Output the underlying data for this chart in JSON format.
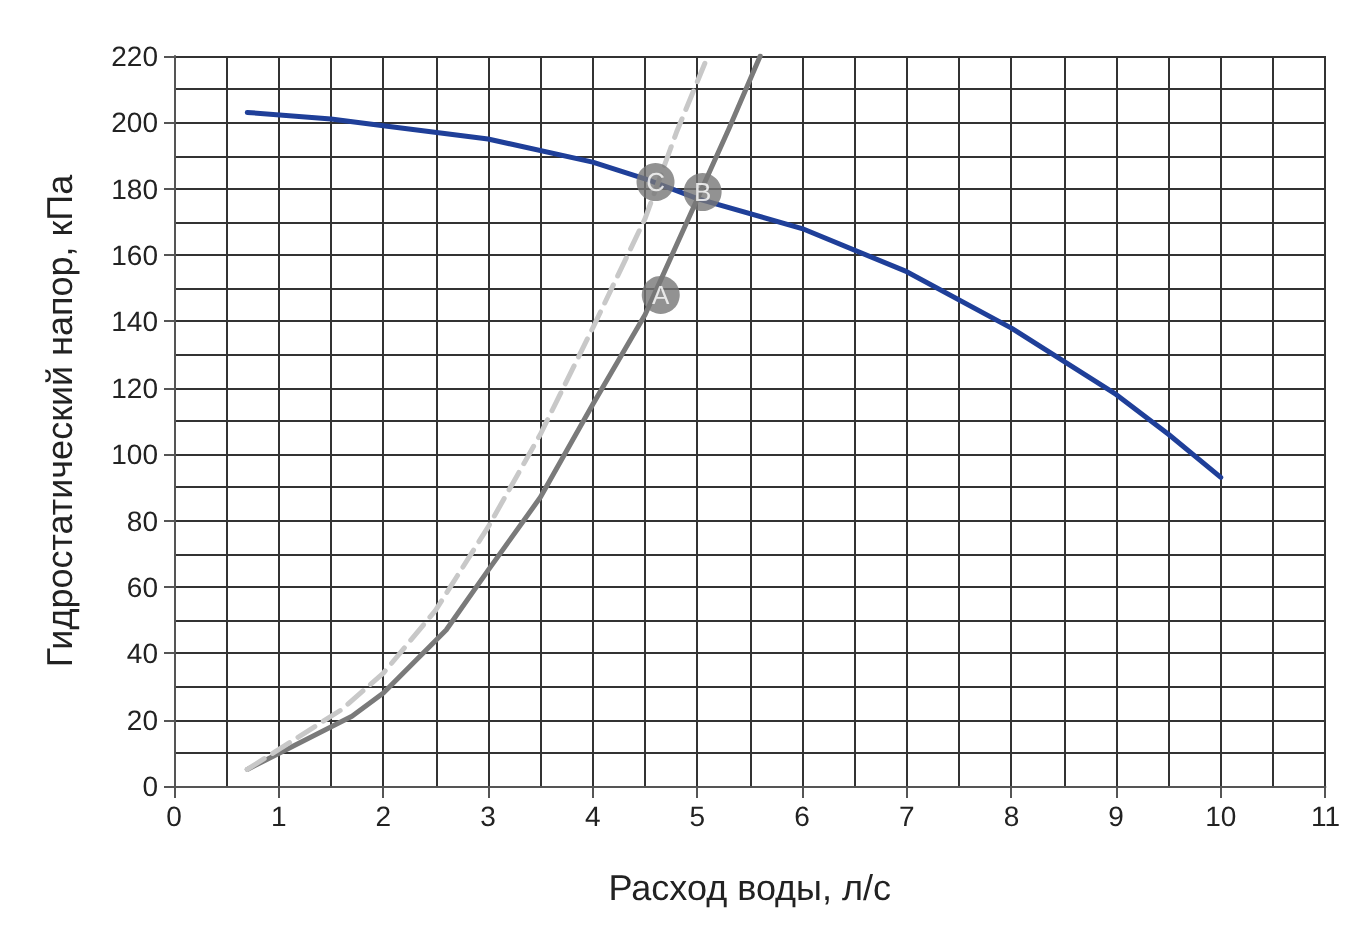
{
  "chart_data": {
    "type": "line",
    "xlabel": "Расход воды, л/с",
    "ylabel": "Гидростатический напор, кПа",
    "xlim": [
      0,
      11
    ],
    "xticks": [
      0,
      1,
      2,
      3,
      4,
      5,
      6,
      7,
      8,
      9,
      10,
      11
    ],
    "ylim": [
      0,
      220
    ],
    "yticks": [
      0,
      20,
      40,
      60,
      80,
      100,
      120,
      140,
      160,
      180,
      200,
      220
    ],
    "grid": true,
    "marker": "none",
    "series": [
      {
        "color": "#1f3f99",
        "line_style": "solid",
        "x": [
          0.7,
          1.5,
          2,
          3,
          4,
          4.5,
          5,
          6,
          7,
          8,
          9,
          9.5,
          10
        ],
        "values": [
          203,
          201,
          199,
          195,
          188,
          183,
          177,
          168,
          155,
          138,
          118,
          106,
          93
        ]
      },
      {
        "color": "#7a7a7a",
        "line_style": "solid",
        "x": [
          0.7,
          1.7,
          2,
          2.6,
          3,
          3.5,
          4,
          4.5,
          5,
          5.3,
          5.6
        ],
        "values": [
          5,
          21,
          28,
          47,
          65,
          87,
          115,
          142,
          177,
          198,
          220
        ]
      },
      {
        "color": "#c8c8c8",
        "line_style": "dashed",
        "x": [
          0.7,
          1.6,
          2,
          2.5,
          3,
          3.5,
          4,
          4.5,
          4.8,
          5.1
        ],
        "values": [
          5,
          23,
          34,
          53,
          78,
          106,
          138,
          171,
          197,
          220
        ]
      }
    ],
    "annotations": [
      {
        "text": "A",
        "x": 4.65,
        "y": 148
      },
      {
        "text": "B",
        "x": 5.05,
        "y": 179
      },
      {
        "text": "C",
        "x": 4.6,
        "y": 182
      }
    ]
  }
}
